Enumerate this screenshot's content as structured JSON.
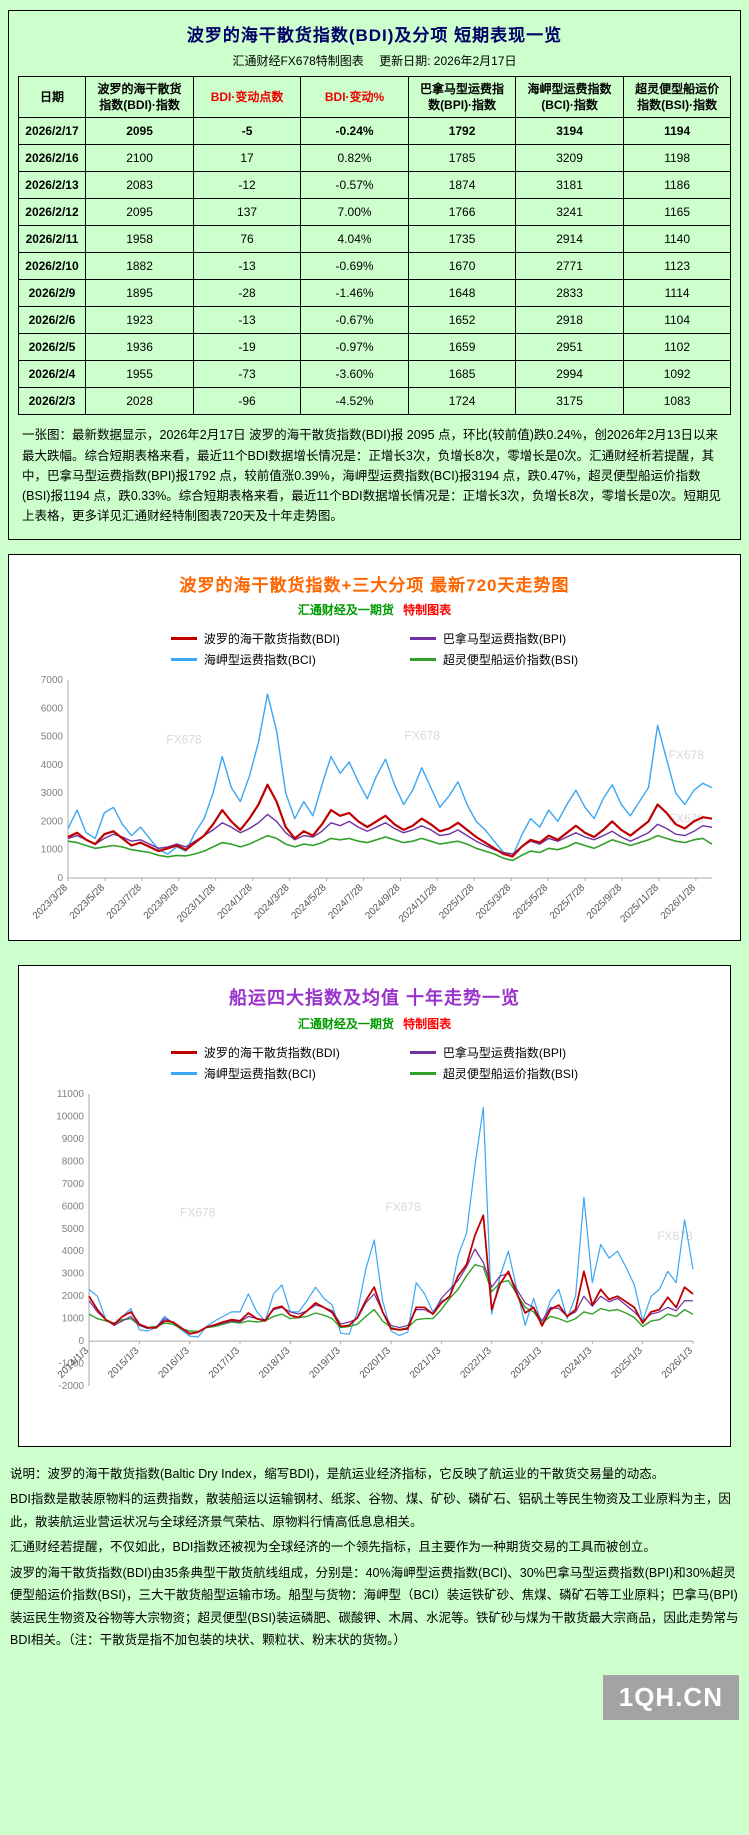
{
  "table_panel": {
    "title": "波罗的海干散货指数(BDI)及分项  短期表现一览",
    "subtitle": "汇通财经FX678特制图表　 更新日期: 2026年2月17日",
    "summary": "一张图：最新数据显示，2026年2月17日 波罗的海干散货指数(BDI)报 2095 点，环比(较前值)跌0.24%，创2026年2月13日以来最大跌幅。综合短期表格来看，最近11个BDI数据增长情况是：正增长3次，负增长8次，零增长是0次。汇通财经析若提醒，其中，巴拿马型运费指数(BPI)报1792 点，较前值涨0.39%，海岬型运费指数(BCI)报3194 点，跌0.47%，超灵便型船运价指数(BSI)报1194 点，跌0.33%。综合短期表格来看，最近11个BDI数据增长情况是：正增长3次，负增长8次，零增长是0次。短期见上表格，更多详见汇通财经特制图表720天及十年走势图。"
  },
  "table": {
    "headers": [
      "日期",
      "波罗的海干散货\n指数(BDI)·指数",
      "BDI·变动点数",
      "BDI·变动%",
      "巴拿马型运费指\n数(BPI)·指数",
      "海岬型运费指数\n(BCI)·指数",
      "超灵便型船运价\n指数(BSI)·指数"
    ],
    "red_header_indices": [
      2,
      3
    ],
    "rows": [
      [
        "2026/2/17",
        "2095",
        "-5",
        "-0.24%",
        "1792",
        "3194",
        "1194"
      ],
      [
        "2026/2/16",
        "2100",
        "17",
        "0.82%",
        "1785",
        "3209",
        "1198"
      ],
      [
        "2026/2/13",
        "2083",
        "-12",
        "-0.57%",
        "1874",
        "3181",
        "1186"
      ],
      [
        "2026/2/12",
        "2095",
        "137",
        "7.00%",
        "1766",
        "3241",
        "1165"
      ],
      [
        "2026/2/11",
        "1958",
        "76",
        "4.04%",
        "1735",
        "2914",
        "1140"
      ],
      [
        "2026/2/10",
        "1882",
        "-13",
        "-0.69%",
        "1670",
        "2771",
        "1123"
      ],
      [
        "2026/2/9",
        "1895",
        "-28",
        "-1.46%",
        "1648",
        "2833",
        "1114"
      ],
      [
        "2026/2/6",
        "1923",
        "-13",
        "-0.67%",
        "1652",
        "2918",
        "1104"
      ],
      [
        "2026/2/5",
        "1936",
        "-19",
        "-0.97%",
        "1659",
        "2951",
        "1102"
      ],
      [
        "2026/2/4",
        "1955",
        "-73",
        "-3.60%",
        "1685",
        "2994",
        "1092"
      ],
      [
        "2026/2/3",
        "2028",
        "-96",
        "-4.52%",
        "1724",
        "3175",
        "1083"
      ]
    ]
  },
  "chart_data": [
    {
      "type": "line",
      "title": "波罗的海干散货指数+三大分项  最新720天走势图",
      "subtitle_left": "汇通财经及一期货",
      "subtitle_right": "特制图表",
      "watermark": "FX678",
      "ylim": [
        0,
        7000
      ],
      "ytick_step": 1000,
      "grid": false,
      "legend_position": "top",
      "x_axis_at": 0,
      "x_labels": [
        "2023/3/28",
        "2023/5/28",
        "2023/7/28",
        "2023/9/28",
        "2023/11/28",
        "2024/1/28",
        "2024/3/28",
        "2024/5/28",
        "2024/7/28",
        "2024/9/28",
        "2024/11/28",
        "2025/1/28",
        "2025/3/28",
        "2025/5/28",
        "2025/7/28",
        "2025/9/28",
        "2025/11/28",
        "2026/1/28"
      ],
      "series": [
        {
          "name": "波罗的海干散货指数(BDI)",
          "color": "#c00000",
          "values": [
            1450,
            1600,
            1350,
            1200,
            1550,
            1650,
            1400,
            1150,
            1250,
            1100,
            950,
            1050,
            1150,
            1000,
            1250,
            1500,
            1900,
            2400,
            2000,
            1700,
            2100,
            2600,
            3300,
            2700,
            1800,
            1400,
            1650,
            1500,
            1900,
            2400,
            2200,
            2300,
            2000,
            1800,
            2000,
            2200,
            1900,
            1700,
            1850,
            2100,
            1900,
            1650,
            1750,
            1950,
            1700,
            1450,
            1250,
            1050,
            850,
            760,
            1100,
            1350,
            1250,
            1500,
            1350,
            1600,
            1850,
            1600,
            1450,
            1700,
            2000,
            1700,
            1500,
            1750,
            2000,
            2600,
            2300,
            1900,
            1750,
            2000,
            2150,
            2095
          ]
        },
        {
          "name": "巴拿马型运费指数(BPI)",
          "color": "#7030a0",
          "values": [
            1400,
            1500,
            1350,
            1200,
            1400,
            1550,
            1450,
            1300,
            1350,
            1200,
            1050,
            1100,
            1200,
            1100,
            1300,
            1500,
            1700,
            1950,
            1800,
            1600,
            1750,
            1950,
            2250,
            2000,
            1600,
            1350,
            1500,
            1450,
            1650,
            1950,
            1850,
            2000,
            1800,
            1650,
            1800,
            1950,
            1750,
            1600,
            1700,
            1850,
            1700,
            1500,
            1550,
            1700,
            1500,
            1300,
            1150,
            1000,
            900,
            850,
            1100,
            1300,
            1200,
            1400,
            1300,
            1450,
            1600,
            1450,
            1350,
            1500,
            1650,
            1450,
            1300,
            1450,
            1600,
            1900,
            1750,
            1550,
            1500,
            1650,
            1850,
            1792
          ]
        },
        {
          "name": "海岬型运费指数(BCI)",
          "color": "#3aa6f4",
          "values": [
            1750,
            2400,
            1600,
            1400,
            2300,
            2500,
            1900,
            1500,
            1800,
            1400,
            1000,
            850,
            1100,
            950,
            1600,
            2100,
            3000,
            4300,
            3200,
            2700,
            3600,
            4800,
            6500,
            5200,
            3000,
            2100,
            2700,
            2200,
            3300,
            4300,
            3700,
            4100,
            3400,
            2800,
            3600,
            4200,
            3300,
            2600,
            3100,
            3900,
            3200,
            2500,
            2900,
            3400,
            2600,
            2000,
            1700,
            1300,
            900,
            760,
            1500,
            2100,
            1800,
            2400,
            2000,
            2600,
            3100,
            2500,
            2100,
            2800,
            3300,
            2600,
            2200,
            2700,
            3200,
            5400,
            4200,
            3000,
            2600,
            3100,
            3350,
            3194
          ]
        },
        {
          "name": "超灵便型船运价指数(BSI)",
          "color": "#33a02c",
          "values": [
            1300,
            1250,
            1150,
            1050,
            1100,
            1150,
            1100,
            1000,
            950,
            900,
            800,
            750,
            800,
            780,
            850,
            950,
            1100,
            1250,
            1200,
            1100,
            1200,
            1350,
            1500,
            1400,
            1200,
            1100,
            1200,
            1150,
            1250,
            1400,
            1350,
            1400,
            1300,
            1250,
            1350,
            1450,
            1350,
            1250,
            1300,
            1400,
            1300,
            1200,
            1250,
            1300,
            1200,
            1050,
            950,
            850,
            700,
            620,
            800,
            950,
            900,
            1050,
            1000,
            1100,
            1250,
            1150,
            1050,
            1200,
            1350,
            1250,
            1150,
            1250,
            1350,
            1500,
            1400,
            1300,
            1250,
            1350,
            1400,
            1194
          ]
        }
      ]
    },
    {
      "type": "line",
      "title": "船运四大指数及均值 十年走势一览",
      "subtitle_left": "汇通财经及一期货",
      "subtitle_right": "特制图表",
      "watermark": "FX678",
      "ylim": [
        -2000,
        11000
      ],
      "ytick_step": 1000,
      "grid": false,
      "legend_position": "top",
      "x_axis_at": 0,
      "x_labels": [
        "2014/1/3",
        "2015/1/3",
        "2016/1/3",
        "2017/1/3",
        "2018/1/3",
        "2019/1/3",
        "2020/1/3",
        "2021/1/3",
        "2022/1/3",
        "2023/1/3",
        "2024/1/3",
        "2025/1/3",
        "2026/1/3"
      ],
      "series": [
        {
          "name": "波罗的海干散货指数(BDI)",
          "color": "#c00000",
          "values": [
            2000,
            1400,
            950,
            750,
            1100,
            1300,
            750,
            600,
            590,
            900,
            850,
            580,
            320,
            400,
            620,
            720,
            850,
            950,
            900,
            1250,
            1000,
            900,
            1450,
            1550,
            1150,
            1050,
            1350,
            1700,
            1500,
            1270,
            650,
            700,
            1050,
            1800,
            2400,
            1300,
            550,
            500,
            550,
            1500,
            1500,
            1200,
            1700,
            2000,
            2900,
            3400,
            4700,
            5600,
            1400,
            2550,
            3100,
            2100,
            1250,
            1500,
            680,
            1400,
            1600,
            1100,
            1400,
            3100,
            1600,
            2300,
            1850,
            2000,
            1750,
            1500,
            800,
            1300,
            1400,
            1950,
            1500,
            2400,
            2095
          ]
        },
        {
          "name": "巴拿马型运费指数(BPI)",
          "color": "#7030a0",
          "values": [
            1800,
            1300,
            950,
            700,
            900,
            1100,
            700,
            560,
            620,
            1000,
            850,
            600,
            350,
            400,
            620,
            700,
            800,
            900,
            850,
            1100,
            1000,
            950,
            1400,
            1500,
            1300,
            1200,
            1350,
            1600,
            1500,
            1350,
            750,
            850,
            1000,
            1700,
            2100,
            1300,
            700,
            600,
            700,
            1400,
            1400,
            1200,
            1900,
            2300,
            2700,
            3300,
            4100,
            3500,
            2400,
            2900,
            3000,
            2300,
            1700,
            1500,
            900,
            1500,
            1450,
            1100,
            1300,
            2000,
            1550,
            2000,
            1750,
            1900,
            1600,
            1300,
            900,
            1200,
            1300,
            1500,
            1350,
            1800,
            1792
          ]
        },
        {
          "name": "海岬型运费指数(BCI)",
          "color": "#3aa6f4",
          "values": [
            2300,
            2000,
            950,
            700,
            1100,
            1450,
            500,
            450,
            600,
            1100,
            800,
            500,
            220,
            180,
            650,
            900,
            1100,
            1300,
            1300,
            2100,
            1300,
            900,
            2100,
            2500,
            1300,
            1300,
            1800,
            2400,
            1900,
            1600,
            350,
            300,
            1300,
            3200,
            4500,
            1800,
            450,
            250,
            400,
            2600,
            2100,
            1300,
            1800,
            1900,
            3800,
            4800,
            7800,
            10400,
            1200,
            2900,
            4000,
            2300,
            700,
            1900,
            700,
            1800,
            2300,
            1000,
            2000,
            6400,
            2600,
            4300,
            3700,
            4000,
            3300,
            2500,
            900,
            2000,
            2300,
            3100,
            2600,
            5400,
            3194
          ]
        },
        {
          "name": "超灵便型船运价指数(BSI)",
          "color": "#33a02c",
          "values": [
            1200,
            1000,
            900,
            800,
            950,
            1000,
            700,
            600,
            650,
            800,
            750,
            550,
            450,
            430,
            600,
            650,
            750,
            850,
            800,
            900,
            850,
            900,
            1100,
            1200,
            1000,
            1050,
            1100,
            1250,
            1150,
            1000,
            600,
            650,
            750,
            1100,
            1400,
            900,
            600,
            500,
            600,
            950,
            1000,
            1000,
            1400,
            1900,
            2300,
            2900,
            3400,
            3300,
            2200,
            2600,
            2700,
            2100,
            1500,
            1300,
            800,
            1100,
            1000,
            850,
            1000,
            1300,
            1200,
            1450,
            1350,
            1400,
            1250,
            1050,
            650,
            900,
            950,
            1200,
            1100,
            1400,
            1194
          ]
        }
      ]
    }
  ],
  "notes": {
    "paragraphs": [
      "说明：波罗的海干散货指数(Baltic Dry Index，缩写BDI)，是航运业经济指标，它反映了航运业的干散货交易量的动态。",
      "BDI指数是散装原物料的运费指数，散装船运以运输钢材、纸浆、谷物、煤、矿砂、磷矿石、铝矾土等民生物资及工业原料为主，因此，散装航运业营运状况与全球经济景气荣枯、原物料行情高低息息相关。",
      "汇通财经若提醒，不仅如此，BDI指数还被视为全球经济的一个领先指标，且主要作为一种期货交易的工具而被创立。",
      "波罗的海干散货指数(BDI)由35条典型干散货航线组成，分别是：40%海岬型运费指数(BCI)、30%巴拿马型运费指数(BPI)和30%超灵便型船运价指数(BSI)，三大干散货船型运输市场。船型与货物：海岬型（BCI）装运铁矿砂、焦煤、磷矿石等工业原料；巴拿马(BPI)装运民生物资及谷物等大宗物资；超灵便型(BSI)装运磷肥、碳酸钾、木屑、水泥等。铁矿砂与煤为干散货最大宗商品，因此走势常与BDI相关。（注：干散货是指不加包装的块状、颗粒状、粉末状的货物。）"
    ]
  },
  "footer": {
    "logo": "1QH.CN"
  }
}
